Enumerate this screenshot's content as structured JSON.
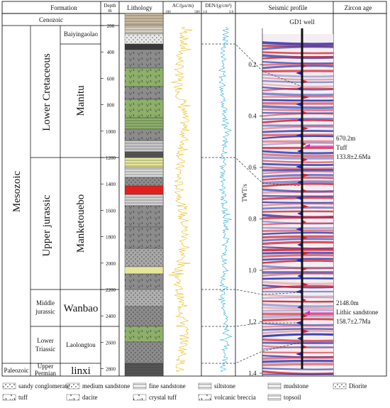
{
  "headers": {
    "formation": "Formation",
    "depth": "Depth\nm",
    "lithology": "Lithology",
    "ac": "AC/(μs/m)",
    "ac_min": "100",
    "ac_max": "500",
    "den": "DEN/(g/cm³)",
    "den_min": "1.0",
    "den_max": "3.0",
    "seismic": "Seismic profile",
    "zircon": "Zircon age"
  },
  "strat": {
    "cenozoic": "Cenozoic",
    "mesozoic": "Mesozoic",
    "paleozoic": "Paleozoic",
    "lower_cretaceous": "Lower Cretaceous",
    "upper_jurassic": "Upper jurassic",
    "middle_jurassic": "Middle\njurassic",
    "lower_triassic": "Lower\nTriassic",
    "upper_permian": "Upper\nPermian",
    "baiyingaolao": "Baiyingaolao",
    "manitu": "Manitu",
    "manketouebo": "Manketouebo",
    "wanbao": "Wanbao",
    "laolongtou": "Laolongtou",
    "linxi": "linxi"
  },
  "depth_ticks": [
    "200",
    "400",
    "600",
    "800",
    "1000",
    "1200",
    "1400",
    "1600",
    "1800",
    "2000",
    "2200",
    "2400",
    "2600",
    "2800"
  ],
  "seismic": {
    "well": "GD1 well",
    "axis_label": "TWT/s",
    "twt_ticks": [
      "0.2",
      "0.4",
      "0.6",
      "0.8",
      "1.0",
      "1.2",
      "1.4"
    ]
  },
  "samples": [
    {
      "depth": "670.2m",
      "lith": "Tuff",
      "age": "133.8±2.6Ma"
    },
    {
      "depth": "2148.0m",
      "lith": "Lithic sandstone",
      "age": "158.7±2.7Ma"
    }
  ],
  "legend": [
    "sandy conglomerate",
    "medium sandstone",
    "fine sandstone",
    "siltstone",
    "mudstone",
    "Diorite",
    "tuff",
    "dacite",
    "crystal tuff",
    "volcanic breccia",
    "topsoil"
  ],
  "colors": {
    "ac_curve": "#e8b400",
    "den_curve": "#19a8d8",
    "marker": "#e020c8",
    "seis_red": "#d8202a",
    "seis_blue": "#2230b0",
    "green_litho": "#8db06a",
    "gray_litho": "#8c8c8c",
    "red_litho": "#e02020",
    "yellow_litho": "#e6e69a"
  }
}
